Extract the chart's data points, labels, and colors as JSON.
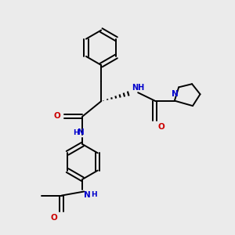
{
  "bg_color": "#ebebeb",
  "bond_color": "#000000",
  "N_color": "#0000cc",
  "O_color": "#cc0000",
  "line_width": 1.4,
  "figsize": [
    3.0,
    3.0
  ],
  "dpi": 100,
  "xlim": [
    0,
    10
  ],
  "ylim": [
    0,
    10
  ]
}
